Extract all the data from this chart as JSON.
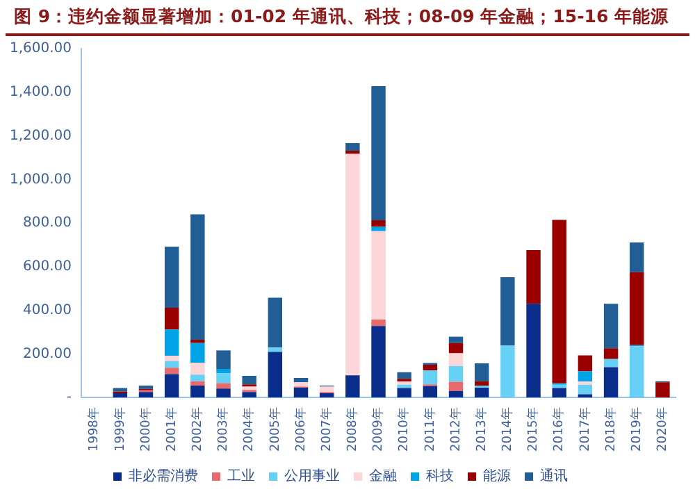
{
  "chart_data": {
    "type": "bar",
    "stacked": true,
    "title": "图 9：违约金额显著增加：01-02 年通讯、科技；08-09 年金融；15-16 年能源",
    "categories": [
      "1998年",
      "1999年",
      "2000年",
      "2001年",
      "2002年",
      "2003年",
      "2004年",
      "2005年",
      "2006年",
      "2007年",
      "2008年",
      "2009年",
      "2010年",
      "2011年",
      "2012年",
      "2013年",
      "2014年",
      "2015年",
      "2016年",
      "2017年",
      "2018年",
      "2019年",
      "2020年"
    ],
    "series": [
      {
        "name": "非必需消费",
        "color": "#0a2d8c",
        "values": [
          0,
          20,
          25,
          107,
          55,
          41,
          25,
          209,
          45,
          20,
          102,
          328,
          44,
          52,
          30,
          45,
          0,
          430,
          44,
          15,
          139,
          0,
          0
        ]
      },
      {
        "name": "工业",
        "color": "#e86a6c",
        "values": [
          0,
          0,
          8,
          30,
          20,
          25,
          10,
          0,
          5,
          5,
          0,
          30,
          0,
          8,
          42,
          0,
          0,
          0,
          0,
          0,
          0,
          0,
          0
        ]
      },
      {
        "name": "公用事业",
        "color": "#66d0f5",
        "values": [
          0,
          0,
          0,
          30,
          30,
          45,
          0,
          20,
          0,
          0,
          0,
          0,
          15,
          65,
          73,
          10,
          238,
          0,
          15,
          44,
          38,
          235,
          0
        ]
      },
      {
        "name": "金融",
        "color": "#fcd5d8",
        "values": [
          0,
          0,
          0,
          25,
          55,
          null,
          15,
          0,
          20,
          25,
          1015,
          405,
          15,
          null,
          58,
          0,
          null,
          0,
          0,
          15,
          0,
          0,
          0
        ]
      },
      {
        "name": "科技",
        "color": "#00a3e6",
        "values": [
          0,
          0,
          0,
          120,
          90,
          20,
          0,
          0,
          0,
          0,
          0,
          20,
          0,
          0,
          0,
          0,
          0,
          0,
          6,
          46,
          0,
          5,
          0
        ]
      },
      {
        "name": "能源",
        "color": "#9a0000",
        "values": [
          0,
          8,
          7,
          100,
          15,
          0,
          10,
          0,
          0,
          0,
          15,
          30,
          12,
          25,
          47,
          20,
          0,
          246,
          750,
          73,
          49,
          335,
          70
        ]
      },
      {
        "name": "通讯",
        "color": "#215e96",
        "values": [
          0,
          16,
          15,
          280,
          575,
          85,
          39,
          229,
          20,
          5,
          35,
          615,
          30,
          8,
          29,
          82,
          314,
          0,
          0,
          0,
          204,
          136,
          5
        ]
      }
    ],
    "ylim": [
      0,
      1600
    ],
    "yticks": [
      {
        "value": 0,
        "label": "-"
      },
      {
        "value": 200,
        "label": "200.00"
      },
      {
        "value": 400,
        "label": "400.00"
      },
      {
        "value": 600,
        "label": "600.00"
      },
      {
        "value": 800,
        "label": "800.00"
      },
      {
        "value": 1000,
        "label": "1,000.00"
      },
      {
        "value": 1200,
        "label": "1,200.00"
      },
      {
        "value": 1400,
        "label": "1,400.00"
      },
      {
        "value": 1600,
        "label": "1,600.00"
      }
    ],
    "grid": false,
    "legend": "bottom"
  }
}
